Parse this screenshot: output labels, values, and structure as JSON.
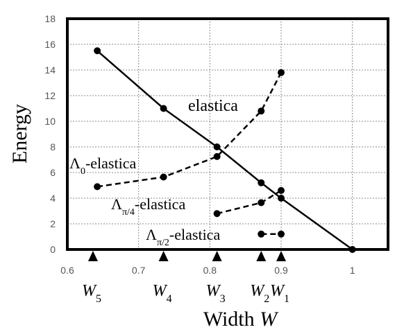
{
  "chart_data": {
    "type": "line",
    "xlabel": {
      "text": "Width ",
      "var": "W"
    },
    "ylabel": "Energy",
    "xlim": [
      0.6,
      1.05
    ],
    "ylim": [
      0,
      18
    ],
    "x_ticks": [
      "0.6",
      "0.7",
      "0.8",
      "0.9",
      "1"
    ],
    "x_tick_values": [
      0.6,
      0.7,
      0.8,
      0.9,
      1.0
    ],
    "y_ticks": [
      "0",
      "2",
      "4",
      "6",
      "8",
      "10",
      "12",
      "14",
      "16",
      "18"
    ],
    "y_tick_values": [
      0,
      2,
      4,
      6,
      8,
      10,
      12,
      14,
      16,
      18
    ],
    "grid": true,
    "series": [
      {
        "name": "elastica",
        "line_style": "solid",
        "x": [
          0.642,
          0.735,
          0.81,
          0.872,
          0.9,
          1.0
        ],
        "y": [
          15.5,
          11.0,
          8.0,
          5.2,
          4.0,
          0.0
        ]
      },
      {
        "name": "Λ0-elastica",
        "line_style": "dashed",
        "x": [
          0.642,
          0.735,
          0.81,
          0.872,
          0.9
        ],
        "y": [
          4.9,
          5.65,
          7.25,
          10.8,
          13.8
        ]
      },
      {
        "name": "Λπ/4-elastica",
        "line_style": "dashed",
        "x": [
          0.81,
          0.872,
          0.9
        ],
        "y": [
          2.8,
          3.65,
          4.6
        ]
      },
      {
        "name": "Λπ/2-elastica",
        "line_style": "dashed",
        "x": [
          0.872,
          0.9
        ],
        "y": [
          1.2,
          1.2
        ]
      }
    ],
    "critical_widths": [
      {
        "x": 0.636,
        "base": "W",
        "sub": "5"
      },
      {
        "x": 0.735,
        "base": "W",
        "sub": "4"
      },
      {
        "x": 0.81,
        "base": "W",
        "sub": "3"
      },
      {
        "x": 0.872,
        "base": "W",
        "sub": "2"
      },
      {
        "x": 0.9,
        "base": "W",
        "sub": "1"
      }
    ],
    "series_labels": [
      {
        "series": 0,
        "base": "elastica",
        "sub": "",
        "suffix": ""
      },
      {
        "series": 1,
        "base": "Λ",
        "sub": "0",
        "suffix": "-elastica"
      },
      {
        "series": 2,
        "base": "Λ",
        "sub": "π/4",
        "suffix": "-elastica"
      },
      {
        "series": 3,
        "base": "Λ",
        "sub": "π/2",
        "suffix": "-elastica"
      }
    ],
    "colors": {
      "line": "#000000",
      "grid": "#8a8a8a",
      "tick_text": "#555555"
    }
  }
}
